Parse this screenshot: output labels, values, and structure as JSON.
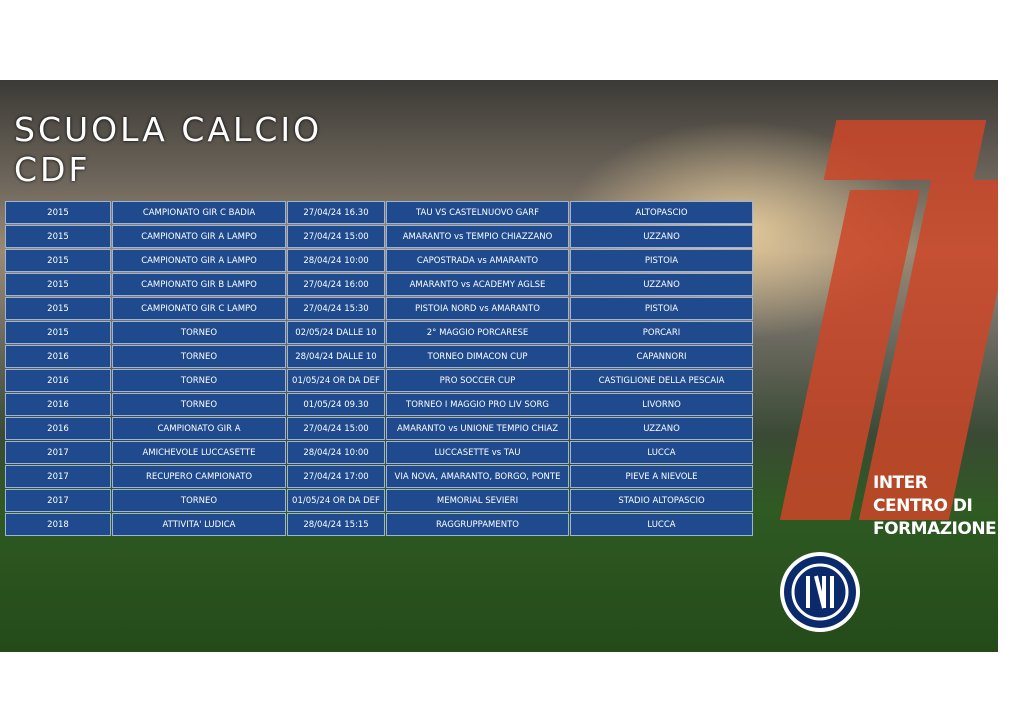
{
  "header": {
    "title": [
      "SCUOLA CALCIO",
      "CDF"
    ]
  },
  "table": {
    "rows": [
      [
        "2015",
        "CAMPIONATO GIR C BADIA",
        "27/04/24 16.30",
        "TAU VS CASTELNUOVO GARF",
        "ALTOPASCIO"
      ],
      [
        "2015",
        "CAMPIONATO GIR  A LAMPO",
        "27/04/24 15:00",
        "AMARANTO vs TEMPIO CHIAZZANO",
        "UZZANO"
      ],
      [
        "2015",
        "CAMPIONATO GIR A LAMPO",
        "28/04/24 10:00",
        "CAPOSTRADA vs AMARANTO",
        "PISTOIA"
      ],
      [
        "2015",
        "CAMPIONATO GIR B LAMPO",
        "27/04/24 16:00",
        "AMARANTO vs ACADEMY AGLSE",
        "UZZANO"
      ],
      [
        "2015",
        "CAMPIONATO GIR C LAMPO",
        "27/04/24 15:30",
        "PISTOIA NORD vs AMARANTO",
        "PISTOIA"
      ],
      [
        "2015",
        "TORNEO",
        "02/05/24 DALLE  10",
        "2° MAGGIO PORCARESE",
        "PORCARI"
      ],
      [
        "2016",
        "TORNEO",
        "28/04/24 DALLE 10",
        "TORNEO DIMACON CUP",
        "CAPANNORI"
      ],
      [
        "2016",
        "TORNEO",
        "01/05/24 OR DA DEF",
        "PRO SOCCER CUP",
        "CASTIGLIONE DELLA PESCAIA"
      ],
      [
        "2016",
        "TORNEO",
        "01/05/24 09.30",
        "TORNEO I MAGGIO PRO LIV SORG",
        "LIVORNO"
      ],
      [
        "2016",
        "CAMPIONATO GIR A",
        "27/04/24 15:00",
        "AMARANTO vs UNIONE TEMPIO CHIAZ",
        "UZZANO"
      ],
      [
        "2017",
        "AMICHEVOLE LUCCASETTE",
        "28/04/24 10:00",
        "LUCCASETTE vs TAU",
        "LUCCA"
      ],
      [
        "2017",
        "RECUPERO CAMPIONATO",
        "27/04/24 17:00",
        "VIA NOVA, AMARANTO, BORGO, PONTE",
        "PIEVE A NIEVOLE"
      ],
      [
        "2017",
        "TORNEO",
        "01/05/24 OR DA DEF",
        "MEMORIAL SEVIERI",
        "STADIO ALTOPASCIO"
      ],
      [
        "2018",
        "ATTIVITA' LUDICA",
        "28/04/24 15:15",
        "RAGGRUPPAMENTO",
        "LUCCA"
      ]
    ]
  },
  "logo": {
    "lines": [
      "INTER",
      "CENTRO DI",
      "FORMAZIONE"
    ]
  }
}
